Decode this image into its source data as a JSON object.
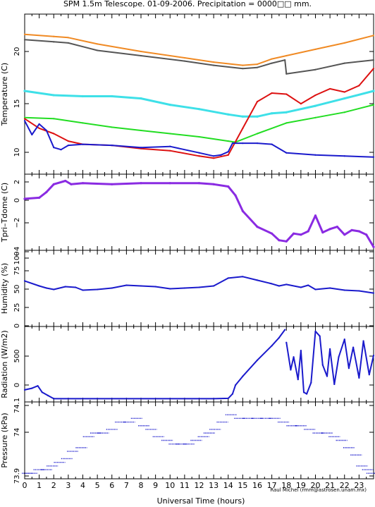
{
  "title": "SPM 1.5m Telescope. 01-09-2006. Precipitation = 0000□□ mm.",
  "credit": "Raul Michel (rmm@astrosen.unam.mx)",
  "xlabel": "Universal Time (hours)",
  "x_ticks": [
    "0",
    "1",
    "2",
    "3",
    "4",
    "5",
    "6",
    "7",
    "8",
    "9",
    "10",
    "11",
    "12",
    "13",
    "14",
    "15",
    "16",
    "17",
    "18",
    "19",
    "20",
    "21",
    "22",
    "23"
  ],
  "colors": {
    "orange": "#f08a24",
    "gray": "#555555",
    "cyan": "#3ee0e8",
    "green": "#22dd22",
    "red": "#dd1111",
    "blue": "#1a1acc",
    "purple": "#8a2be2"
  },
  "chart_data": [
    {
      "type": "line",
      "ylabel": "Temperature (C)",
      "xlim": [
        0,
        24
      ],
      "ylim": [
        8.5,
        23.5
      ],
      "y_ticks": [
        "10",
        "15",
        "20"
      ],
      "series": [
        {
          "color": "orange",
          "x": [
            0,
            2,
            3,
            5,
            8,
            11,
            13,
            15,
            16,
            17,
            18,
            20,
            22,
            24
          ],
          "y": [
            21.6,
            21.4,
            21.3,
            20.7,
            20.0,
            19.4,
            19.0,
            18.7,
            18.8,
            19.3,
            19.6,
            20.2,
            20.8,
            21.5
          ]
        },
        {
          "color": "gray",
          "x": [
            0,
            2,
            3,
            5,
            8,
            11,
            13,
            15,
            16,
            17,
            17.9,
            18,
            20,
            22,
            24
          ],
          "y": [
            21.1,
            20.9,
            20.8,
            20.1,
            19.6,
            19.1,
            18.7,
            18.4,
            18.5,
            18.9,
            19.2,
            17.9,
            18.3,
            18.9,
            19.2
          ]
        },
        {
          "color": "cyan",
          "x": [
            0,
            2,
            4,
            6,
            8,
            10,
            12,
            14,
            15,
            16,
            17,
            18,
            20,
            22,
            24
          ],
          "y": [
            16.3,
            15.9,
            15.8,
            15.8,
            15.6,
            15.0,
            14.6,
            14.1,
            13.9,
            13.9,
            14.2,
            14.3,
            14.9,
            15.6,
            16.3
          ]
        },
        {
          "color": "green",
          "x": [
            0,
            2,
            4,
            6,
            8,
            10,
            12,
            14,
            14.5,
            16,
            18,
            20,
            22,
            24
          ],
          "y": [
            13.8,
            13.7,
            13.3,
            12.9,
            12.6,
            12.3,
            12.0,
            11.6,
            11.5,
            12.3,
            13.3,
            13.8,
            14.3,
            15.0
          ]
        },
        {
          "color": "red",
          "x": [
            0,
            1,
            2,
            3,
            4,
            6,
            8,
            10,
            12,
            13,
            14,
            15,
            16,
            17,
            18,
            19,
            20,
            21,
            22,
            23,
            24
          ],
          "y": [
            13.7,
            12.8,
            12.3,
            11.6,
            11.3,
            11.2,
            10.9,
            10.7,
            10.2,
            10.0,
            10.3,
            12.8,
            15.3,
            16.1,
            16.0,
            15.1,
            15.9,
            16.5,
            16.2,
            16.8,
            18.4
          ]
        },
        {
          "color": "blue",
          "x": [
            0,
            0.5,
            1,
            1.5,
            2,
            2.5,
            3,
            4,
            6,
            8,
            10,
            12,
            13,
            13.5,
            14,
            14.3,
            15,
            16,
            17,
            18,
            20,
            22,
            24
          ],
          "y": [
            13.5,
            12.2,
            13.2,
            12.6,
            11.0,
            10.8,
            11.2,
            11.3,
            11.2,
            11.0,
            11.1,
            10.5,
            10.2,
            10.3,
            10.6,
            11.4,
            11.4,
            11.4,
            11.3,
            10.5,
            10.3,
            10.2,
            10.1
          ]
        }
      ]
    },
    {
      "type": "line",
      "ylabel": "Tpri–Tdome (C)",
      "xlim": [
        0,
        24
      ],
      "ylim": [
        -4.3,
        2.5
      ],
      "y_ticks": [
        "2",
        "0",
        "−2",
        "−4"
      ],
      "series": [
        {
          "color": "purple",
          "x": [
            0,
            1,
            1.5,
            2,
            2.8,
            3.2,
            4,
            6,
            8,
            10,
            12,
            13,
            14,
            14.5,
            15,
            16,
            17,
            17.5,
            18,
            18.5,
            19,
            19.5,
            20,
            20.5,
            21,
            21.5,
            22,
            22.5,
            23,
            23.5,
            24
          ],
          "y": [
            0.3,
            0.4,
            0.9,
            1.6,
            1.9,
            1.6,
            1.7,
            1.6,
            1.7,
            1.7,
            1.7,
            1.6,
            1.4,
            0.6,
            -0.8,
            -2.2,
            -2.8,
            -3.4,
            -3.5,
            -2.8,
            -2.9,
            -2.6,
            -1.2,
            -2.7,
            -2.4,
            -2.2,
            -2.9,
            -2.5,
            -2.6,
            -2.9,
            -4.0
          ]
        }
      ]
    },
    {
      "type": "line",
      "ylabel": "Humidity (%)",
      "xlim": [
        0,
        24
      ],
      "ylim": [
        0,
        107
      ],
      "y_ticks": [
        "0",
        "25",
        "50",
        "75",
        "100"
      ],
      "series": [
        {
          "color": "blue",
          "x": [
            0,
            1,
            1.5,
            2,
            2.8,
            3.5,
            4,
            5,
            6,
            7,
            8,
            9,
            10,
            11,
            12,
            13,
            14,
            15,
            16,
            17,
            17.5,
            18,
            19,
            19.5,
            20,
            21,
            22,
            23,
            24
          ],
          "y": [
            64,
            57,
            54,
            52,
            56,
            55,
            51,
            52,
            54,
            58,
            57,
            56,
            53,
            54,
            55,
            57,
            68,
            70,
            65,
            60,
            57,
            59,
            55,
            58,
            52,
            54,
            51,
            50,
            47
          ]
        }
      ]
    },
    {
      "type": "line",
      "ylabel": "Radiation (W/m2)",
      "xlim": [
        0,
        24
      ],
      "ylim": [
        -40,
        900
      ],
      "y_ticks": [
        "0",
        "500"
      ],
      "series": [
        {
          "color": "blue",
          "x": [
            0,
            0.5,
            0.9,
            1.2,
            1.6,
            2,
            2.5,
            6,
            10,
            13,
            14,
            14.3,
            14.5,
            15,
            16,
            17,
            17.5,
            17.9
          ],
          "y": [
            110,
            130,
            160,
            80,
            40,
            0,
            0,
            0,
            0,
            0,
            5,
            60,
            170,
            280,
            480,
            660,
            760,
            860
          ]
        },
        {
          "color": "blue",
          "x": [
            18,
            18.3,
            18.5,
            18.8,
            19,
            19.2,
            19.4,
            19.7,
            20,
            20.3,
            20.5,
            20.8,
            21,
            21.3,
            21.6,
            22,
            22.3,
            22.6,
            23,
            23.3,
            23.7,
            24
          ],
          "y": [
            700,
            360,
            520,
            240,
            600,
            80,
            60,
            200,
            840,
            780,
            420,
            280,
            620,
            180,
            520,
            740,
            380,
            640,
            260,
            720,
            300,
            540
          ]
        }
      ]
    },
    {
      "type": "scatter",
      "ylabel": "Pressure (kPa)",
      "xlim": [
        0,
        24
      ],
      "ylim": [
        73.895,
        74.105
      ],
      "y_ticks": [
        "73.9",
        "74",
        "74.1"
      ],
      "series": [
        {
          "color": "blue",
          "x": [
            0.2,
            0.5,
            1.0,
            1.5,
            1.9,
            2.4,
            2.9,
            3.3,
            3.9,
            4.4,
            4.9,
            5.4,
            6.0,
            6.6,
            7.2,
            7.7,
            8.2,
            8.7,
            9.2,
            9.8,
            10.3,
            10.8,
            11.3,
            11.8,
            12.3,
            12.7,
            13.1,
            13.6,
            14.2,
            14.8,
            15.4,
            16.0,
            16.6,
            17.2,
            17.8,
            18.4,
            19.0,
            19.6,
            20.2,
            20.8,
            21.3,
            21.8,
            22.3,
            22.8,
            23.2,
            23.6,
            23.9
          ],
          "y": [
            73.91,
            73.91,
            73.92,
            73.92,
            73.93,
            73.94,
            73.95,
            73.97,
            73.98,
            74.01,
            74.02,
            74.02,
            74.03,
            74.05,
            74.05,
            74.06,
            74.04,
            74.03,
            74.01,
            74.0,
            73.99,
            73.99,
            73.99,
            74.0,
            74.01,
            74.02,
            74.03,
            74.05,
            74.07,
            74.06,
            74.06,
            74.06,
            74.06,
            74.06,
            74.05,
            74.04,
            74.04,
            74.03,
            74.02,
            74.02,
            74.01,
            74.0,
            73.98,
            73.96,
            73.93,
            73.92,
            73.91
          ]
        }
      ]
    }
  ]
}
